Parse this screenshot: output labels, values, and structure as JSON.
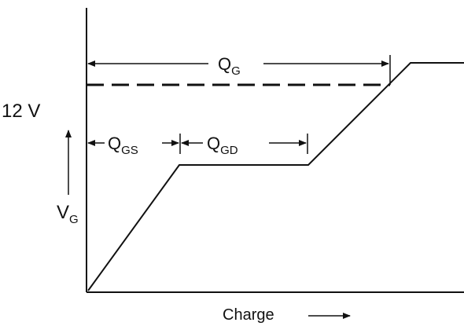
{
  "diagram": {
    "volt_label": "12 V",
    "vg": {
      "main": "V",
      "sub": "G"
    },
    "qg": {
      "main": "Q",
      "sub": "G"
    },
    "qgs": {
      "main": "Q",
      "sub": "GS"
    },
    "qgd": {
      "main": "Q",
      "sub": "GD"
    },
    "x_label": "Charge"
  }
}
